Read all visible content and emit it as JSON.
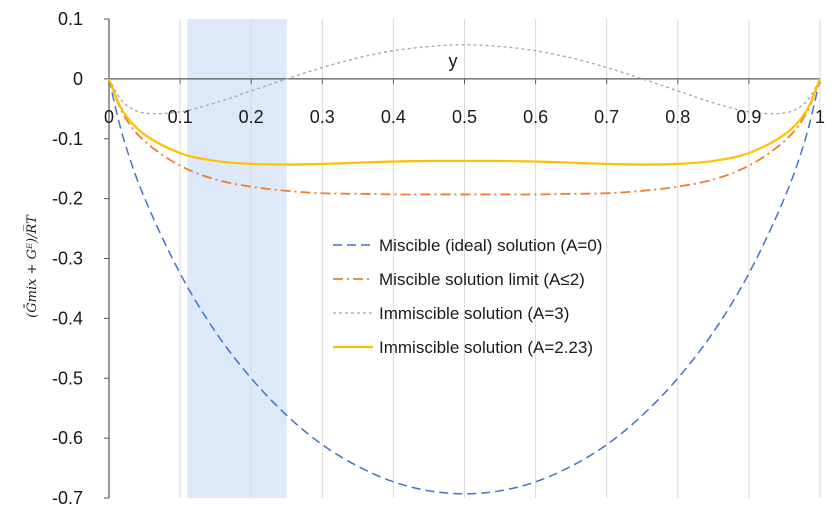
{
  "chart_data": {
    "type": "line",
    "title": "",
    "xlabel": "y",
    "ylabel": "(Ḡmix + Gᴱ)/R̅T",
    "xlim": [
      0,
      1
    ],
    "ylim": [
      -0.7,
      0.1
    ],
    "x_ticks": [
      0,
      0.1,
      0.2,
      0.3,
      0.4,
      0.5,
      0.6,
      0.7,
      0.8,
      0.9,
      1
    ],
    "x_tick_labels": [
      "0",
      "0.1",
      "0.2",
      "0.3",
      "0.4",
      "0.5",
      "0.6",
      "0.7",
      "0.8",
      "0.9",
      "1"
    ],
    "y_ticks": [
      0.1,
      0,
      -0.1,
      -0.2,
      -0.3,
      -0.4,
      -0.5,
      -0.6,
      -0.7
    ],
    "y_tick_labels": [
      "0.1",
      "0",
      "-0.1",
      "-0.2",
      "-0.3",
      "-0.4",
      "-0.5",
      "-0.6",
      "-0.7"
    ],
    "grid": "vertical",
    "legend_position": "center",
    "highlight_band": {
      "x_from": 0.11,
      "x_to": 0.25,
      "color": "#dde8f8"
    },
    "series": [
      {
        "name": "Miscible (ideal) solution (A=0)",
        "color": "#4472c4",
        "style": "dashed",
        "x": [
          0,
          0.02,
          0.05,
          0.1,
          0.15,
          0.2,
          0.25,
          0.3,
          0.35,
          0.4,
          0.45,
          0.5,
          0.55,
          0.6,
          0.65,
          0.7,
          0.75,
          0.8,
          0.85,
          0.9,
          0.95,
          0.98,
          1
        ],
        "y": [
          0,
          -0.098,
          -0.199,
          -0.325,
          -0.423,
          -0.5,
          -0.562,
          -0.611,
          -0.647,
          -0.673,
          -0.688,
          -0.693,
          -0.688,
          -0.673,
          -0.647,
          -0.611,
          -0.562,
          -0.5,
          -0.423,
          -0.325,
          -0.199,
          -0.098,
          0
        ]
      },
      {
        "name": "Miscible solution limit (A≤2)",
        "color": "#ed7d31",
        "style": "dash-dot",
        "x": [
          0,
          0.02,
          0.05,
          0.1,
          0.15,
          0.2,
          0.25,
          0.3,
          0.35,
          0.4,
          0.45,
          0.5,
          0.55,
          0.6,
          0.65,
          0.7,
          0.75,
          0.8,
          0.85,
          0.9,
          0.95,
          0.98,
          1
        ],
        "y": [
          0,
          -0.059,
          -0.104,
          -0.145,
          -0.168,
          -0.18,
          -0.187,
          -0.191,
          -0.192,
          -0.193,
          -0.193,
          -0.193,
          -0.193,
          -0.193,
          -0.192,
          -0.191,
          -0.187,
          -0.18,
          -0.168,
          -0.145,
          -0.104,
          -0.059,
          0
        ]
      },
      {
        "name": "Immiscible solution (A=3)",
        "color": "#a5a5a5",
        "style": "dotted",
        "x": [
          0,
          0.02,
          0.05,
          0.1,
          0.15,
          0.2,
          0.25,
          0.3,
          0.35,
          0.4,
          0.45,
          0.5,
          0.55,
          0.6,
          0.65,
          0.7,
          0.75,
          0.8,
          0.85,
          0.9,
          0.95,
          0.98,
          1
        ],
        "y": [
          0,
          -0.039,
          -0.057,
          -0.055,
          -0.04,
          -0.02,
          0.0,
          0.019,
          0.035,
          0.047,
          0.054,
          0.057,
          0.054,
          0.047,
          0.035,
          0.019,
          0.0,
          -0.02,
          -0.04,
          -0.055,
          -0.057,
          -0.039,
          0
        ]
      },
      {
        "name": "Immiscible solution (A=2.23)",
        "color": "#ffc000",
        "style": "solid",
        "x": [
          0,
          0.02,
          0.05,
          0.1,
          0.15,
          0.2,
          0.25,
          0.3,
          0.35,
          0.4,
          0.45,
          0.5,
          0.55,
          0.6,
          0.65,
          0.7,
          0.75,
          0.8,
          0.85,
          0.9,
          0.95,
          0.98,
          1
        ],
        "y": [
          0,
          -0.055,
          -0.093,
          -0.124,
          -0.137,
          -0.142,
          -0.143,
          -0.142,
          -0.14,
          -0.138,
          -0.137,
          -0.137,
          -0.137,
          -0.138,
          -0.14,
          -0.142,
          -0.143,
          -0.142,
          -0.137,
          -0.124,
          -0.093,
          -0.055,
          0
        ]
      }
    ]
  }
}
